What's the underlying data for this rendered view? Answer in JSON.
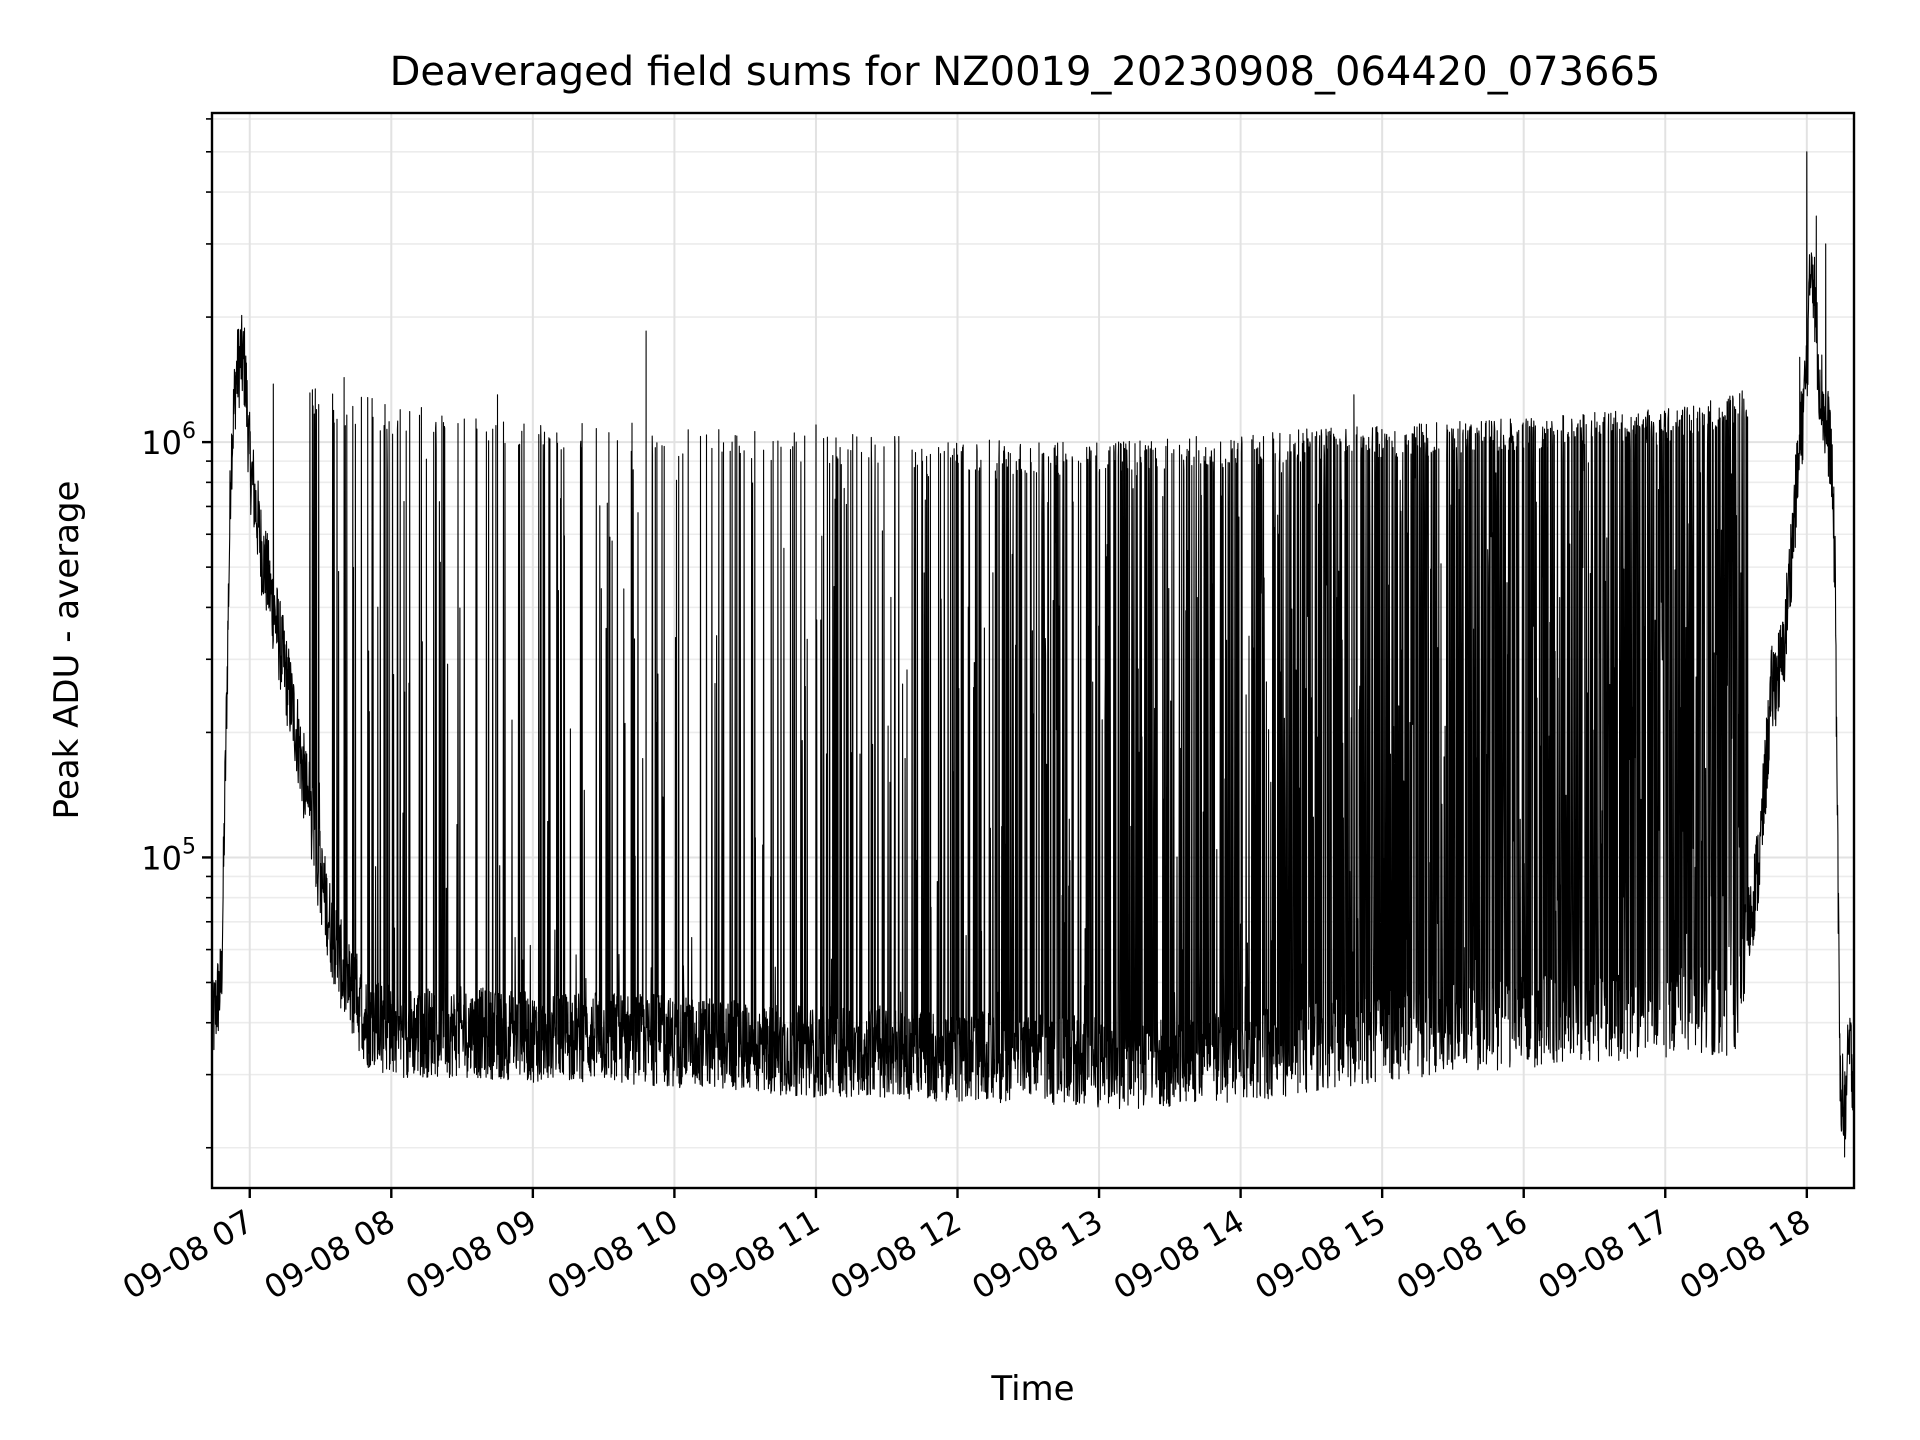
{
  "chart_data": {
    "type": "line",
    "title": "Deaveraged field sums for NZ0019_20230908_064420_073665",
    "xlabel": "Time",
    "ylabel": "Peak ADU - average",
    "yscale": "log",
    "grid": true,
    "line_color": "#000000",
    "xlim": [
      "2023-09-08 06:44",
      "2023-09-08 18:20"
    ],
    "ylim": [
      16000,
      6200000
    ],
    "x_tick_labels": [
      "09-08 07",
      "09-08 08",
      "09-08 09",
      "09-08 10",
      "09-08 11",
      "09-08 12",
      "09-08 13",
      "09-08 14",
      "09-08 15",
      "09-08 16",
      "09-08 17",
      "09-08 18"
    ],
    "y_tick_labels": [
      {
        "base": "10",
        "exp": "5",
        "value": 100000
      },
      {
        "base": "10",
        "exp": "6",
        "value": 1000000
      }
    ],
    "series": [
      {
        "x": [
          "2023-09-08 06:44",
          "2023-09-08 06:46",
          "2023-09-08 06:48",
          "2023-09-08 06:50",
          "2023-09-08 06:52",
          "2023-09-08 06:54",
          "2023-09-08 06:56",
          "2023-09-08 06:58",
          "2023-09-08 07:00",
          "2023-09-08 07:05",
          "2023-09-08 07:10",
          "2023-09-08 07:15",
          "2023-09-08 07:20",
          "2023-09-08 07:25",
          "2023-09-08 07:30",
          "2023-09-08 07:35",
          "2023-09-08 07:40",
          "2023-09-08 07:45",
          "2023-09-08 07:50",
          "2023-09-08 07:55",
          "2023-09-08 08:00",
          "2023-09-08 08:30",
          "2023-09-08 09:00",
          "2023-09-08 09:30",
          "2023-09-08 10:00",
          "2023-09-08 10:30",
          "2023-09-08 11:00",
          "2023-09-08 11:30",
          "2023-09-08 12:00",
          "2023-09-08 12:30",
          "2023-09-08 13:00",
          "2023-09-08 13:30",
          "2023-09-08 14:00",
          "2023-09-08 14:30",
          "2023-09-08 15:00",
          "2023-09-08 15:30",
          "2023-09-08 16:00",
          "2023-09-08 16:30",
          "2023-09-08 17:00",
          "2023-09-08 17:30",
          "2023-09-08 17:40",
          "2023-09-08 17:45",
          "2023-09-08 17:50",
          "2023-09-08 17:55",
          "2023-09-08 18:00",
          "2023-09-08 18:02",
          "2023-09-08 18:05",
          "2023-09-08 18:08",
          "2023-09-08 18:10",
          "2023-09-08 18:12",
          "2023-09-08 18:14",
          "2023-09-08 18:16",
          "2023-09-08 18:18",
          "2023-09-08 18:20"
        ],
        "y": [
          38000,
          45000,
          50000,
          200000,
          900000,
          1400000,
          1600000,
          1500000,
          900000,
          550000,
          400000,
          280000,
          200000,
          130000,
          90000,
          65000,
          52000,
          45000,
          40000,
          39000,
          38000,
          38000,
          37000,
          37000,
          36000,
          35000,
          34000,
          34000,
          33000,
          33000,
          32000,
          32000,
          33000,
          35000,
          37000,
          39000,
          40000,
          41000,
          42000,
          43000,
          100000,
          250000,
          300000,
          700000,
          1500000,
          3000000,
          1500000,
          1100000,
          1000000,
          500000,
          30000,
          24000,
          35000,
          30000
        ],
        "upper_envelope": [
          [
            "2023-09-08 06:58",
            1600000
          ],
          [
            "2023-09-08 07:30",
            1350000
          ],
          [
            "2023-09-08 08:00",
            1250000
          ],
          [
            "2023-09-08 08:30",
            1200000
          ],
          [
            "2023-09-08 09:00",
            1150000
          ],
          [
            "2023-09-08 09:30",
            1130000
          ],
          [
            "2023-09-08 10:00",
            1100000
          ],
          [
            "2023-09-08 10:30",
            1080000
          ],
          [
            "2023-09-08 11:00",
            1060000
          ],
          [
            "2023-09-08 11:30",
            1050000
          ],
          [
            "2023-09-08 12:00",
            1020000
          ],
          [
            "2023-09-08 12:30",
            1000000
          ],
          [
            "2023-09-08 13:00",
            1000000
          ],
          [
            "2023-09-08 13:30",
            1020000
          ],
          [
            "2023-09-08 14:00",
            1050000
          ],
          [
            "2023-09-08 14:30",
            1080000
          ],
          [
            "2023-09-08 15:00",
            1100000
          ],
          [
            "2023-09-08 15:30",
            1120000
          ],
          [
            "2023-09-08 16:00",
            1150000
          ],
          [
            "2023-09-08 16:30",
            1180000
          ],
          [
            "2023-09-08 17:00",
            1200000
          ],
          [
            "2023-09-08 17:30",
            1300000
          ],
          [
            "2023-09-08 17:55",
            1600000
          ]
        ],
        "notable_peaks": [
          [
            "2023-09-08 06:55",
            1600000
          ],
          [
            "2023-09-08 07:10",
            1380000
          ],
          [
            "2023-09-08 07:40",
            1430000
          ],
          [
            "2023-09-08 07:50",
            1280000
          ],
          [
            "2023-09-08 08:45",
            1300000
          ],
          [
            "2023-09-08 09:48",
            1850000
          ],
          [
            "2023-09-08 11:00",
            1100000
          ],
          [
            "2023-09-08 14:48",
            1300000
          ],
          [
            "2023-09-08 17:57",
            1600000
          ],
          [
            "2023-09-08 18:00",
            5000000
          ],
          [
            "2023-09-08 18:04",
            3500000
          ],
          [
            "2023-09-08 18:08",
            3000000
          ]
        ],
        "minimum": [
          "2023-09-08 18:16",
          19000
        ]
      }
    ]
  }
}
